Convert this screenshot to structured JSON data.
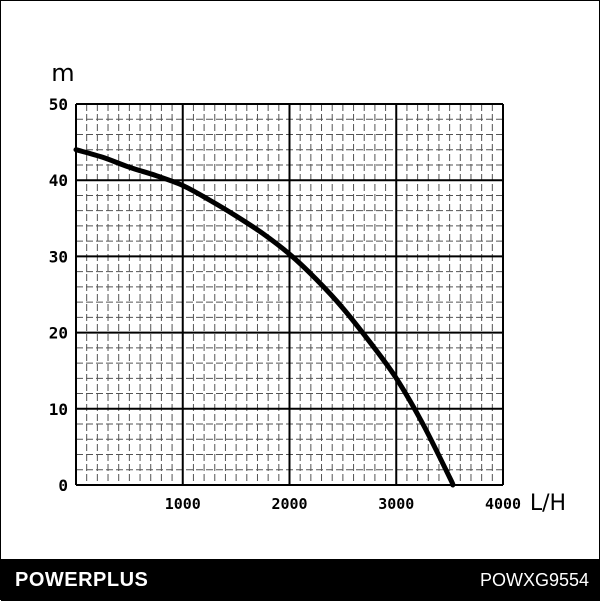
{
  "chart_data": {
    "type": "line",
    "xlabel": "L/H",
    "ylabel": "m",
    "xlim": [
      0,
      4000
    ],
    "ylim": [
      0,
      50
    ],
    "x_ticks": [
      "1000",
      "2000",
      "3000",
      "4000"
    ],
    "y_ticks": [
      "0",
      "10",
      "20",
      "30",
      "40",
      "50"
    ],
    "grid": true,
    "series": [
      {
        "x": [
          0,
          250,
          500,
          750,
          1000,
          1250,
          1500,
          1750,
          2000,
          2250,
          2500,
          2750,
          3000,
          3250,
          3500,
          3530
        ],
        "y": [
          44,
          43,
          41.7,
          40.6,
          39.3,
          37.4,
          35.3,
          33,
          30.3,
          27,
          23.2,
          18.8,
          14,
          8,
          1,
          0
        ]
      }
    ],
    "colors": {
      "line": "#000000",
      "grid_major": "#000000",
      "grid_minor": "#555555"
    }
  },
  "footer": {
    "brand": "POWERPLUS",
    "model": "POWXG9554"
  }
}
